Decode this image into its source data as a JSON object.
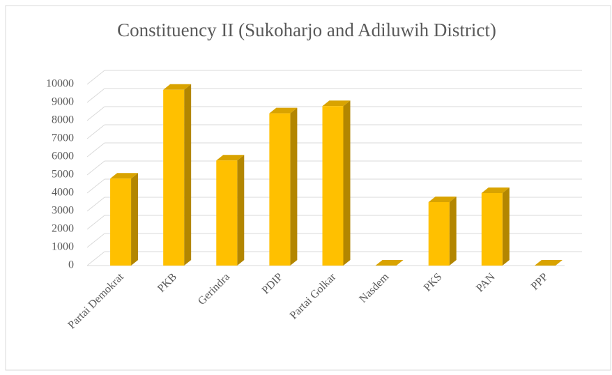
{
  "chart_data": {
    "type": "bar3d",
    "title": "Constituency  II (Sukoharjo  and  Adiluwih  District)",
    "categories": [
      "Partai Demokrat",
      "PKB",
      "Gerindra",
      "PDIP",
      "Partai Golkar",
      "Nasdem",
      "PKS",
      "PAN",
      "PPP"
    ],
    "values": [
      4800,
      9700,
      5800,
      8400,
      8800,
      0,
      3500,
      4000,
      0
    ],
    "color": "#ffc000",
    "ylim": [
      0,
      10000
    ],
    "yticks": [
      0,
      1000,
      2000,
      3000,
      4000,
      5000,
      6000,
      7000,
      8000,
      9000,
      10000
    ],
    "grid": true
  }
}
